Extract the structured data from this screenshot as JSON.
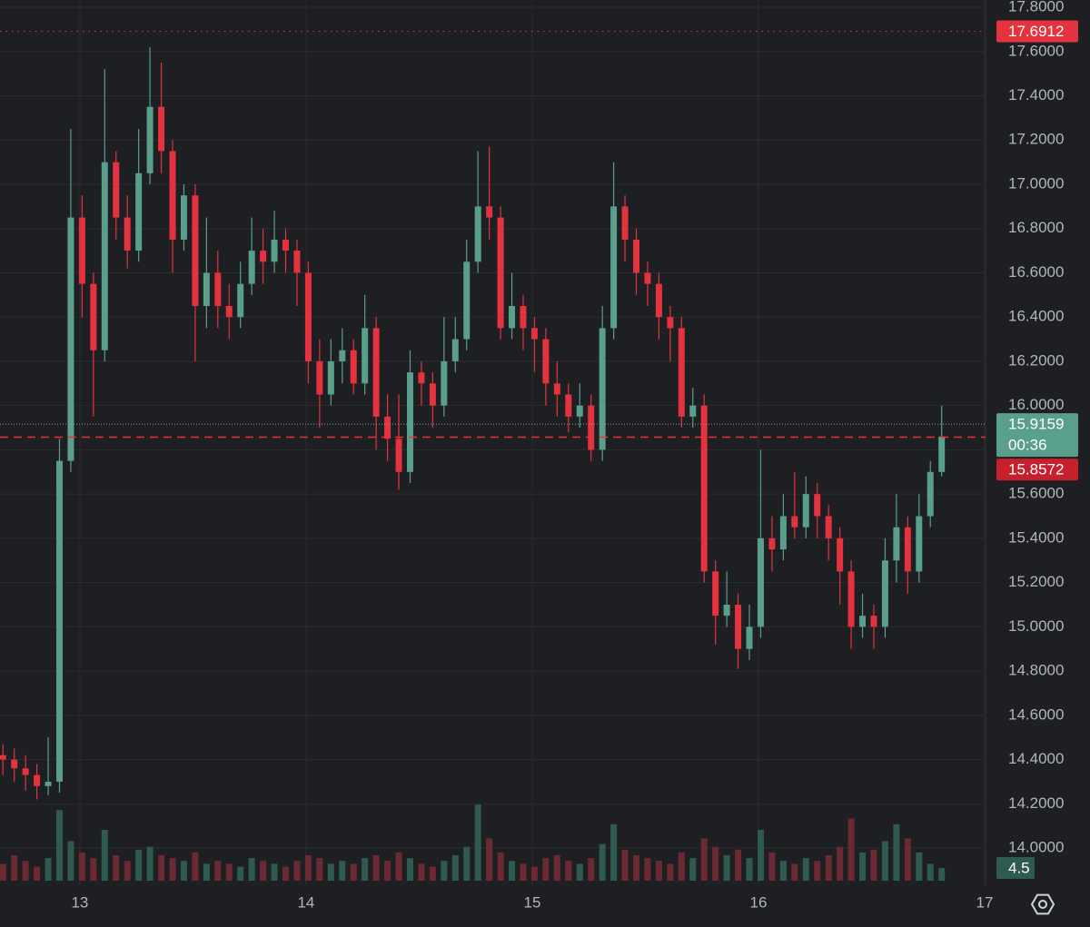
{
  "chart_data": {
    "type": "candlestick",
    "x": [
      12.66,
      12.71,
      12.76,
      12.81,
      12.86,
      12.91,
      12.96,
      13.01,
      13.06,
      13.11,
      13.16,
      13.21,
      13.26,
      13.31,
      13.36,
      13.41,
      13.46,
      13.51,
      13.56,
      13.61,
      13.66,
      13.71,
      13.76,
      13.81,
      13.86,
      13.91,
      13.96,
      14.01,
      14.06,
      14.11,
      14.16,
      14.21,
      14.26,
      14.31,
      14.36,
      14.41,
      14.46,
      14.51,
      14.56,
      14.61,
      14.66,
      14.71,
      14.76,
      14.81,
      14.86,
      14.91,
      14.96,
      15.01,
      15.06,
      15.11,
      15.16,
      15.21,
      15.26,
      15.31,
      15.36,
      15.41,
      15.46,
      15.51,
      15.56,
      15.61,
      15.66,
      15.71,
      15.76,
      15.81,
      15.86,
      15.91,
      15.96,
      16.01,
      16.06,
      16.11,
      16.16,
      16.21,
      16.26,
      16.31,
      16.36,
      16.41,
      16.46,
      16.51,
      16.56,
      16.61,
      16.66,
      16.71,
      16.76,
      16.81
    ],
    "open": [
      14.42,
      14.4,
      14.36,
      14.33,
      14.28,
      14.3,
      15.75,
      16.85,
      16.55,
      16.25,
      17.1,
      16.85,
      16.7,
      17.05,
      17.35,
      17.15,
      16.75,
      16.95,
      16.45,
      16.6,
      16.45,
      16.4,
      16.55,
      16.7,
      16.65,
      16.75,
      16.7,
      16.6,
      16.2,
      16.05,
      16.2,
      16.25,
      16.1,
      16.35,
      15.95,
      15.85,
      15.7,
      16.15,
      16.1,
      16.0,
      16.2,
      16.3,
      16.65,
      16.9,
      16.85,
      16.35,
      16.45,
      16.35,
      16.3,
      16.1,
      16.05,
      15.95,
      16.0,
      15.8,
      16.35,
      16.9,
      16.75,
      16.6,
      16.55,
      16.4,
      16.35,
      15.95,
      16.0,
      15.25,
      15.05,
      15.1,
      14.9,
      15.0,
      15.4,
      15.35,
      15.5,
      15.45,
      15.6,
      15.5,
      15.4,
      15.25,
      15.0,
      15.05,
      15.0,
      15.3,
      15.45,
      15.25,
      15.5,
      15.7
    ],
    "high": [
      14.47,
      14.45,
      14.42,
      14.38,
      14.5,
      15.85,
      17.25,
      16.95,
      16.6,
      17.52,
      17.15,
      16.95,
      17.25,
      17.62,
      17.55,
      17.2,
      17.0,
      17.0,
      16.85,
      16.7,
      16.55,
      16.65,
      16.85,
      16.8,
      16.88,
      16.8,
      16.75,
      16.65,
      16.3,
      16.3,
      16.35,
      16.3,
      16.5,
      16.4,
      16.05,
      16.05,
      16.25,
      16.2,
      16.15,
      16.4,
      16.4,
      16.75,
      17.15,
      17.17,
      16.9,
      16.6,
      16.5,
      16.4,
      16.35,
      16.2,
      16.1,
      16.1,
      16.05,
      16.45,
      17.1,
      16.95,
      16.8,
      16.65,
      16.6,
      16.45,
      16.4,
      16.08,
      16.05,
      15.3,
      15.25,
      15.15,
      15.1,
      15.8,
      15.5,
      15.6,
      15.7,
      15.68,
      15.65,
      15.55,
      15.45,
      15.3,
      15.15,
      15.1,
      15.4,
      15.6,
      15.5,
      15.6,
      15.75,
      16.0
    ],
    "low": [
      14.33,
      14.3,
      14.26,
      14.22,
      14.24,
      14.25,
      15.7,
      16.4,
      15.95,
      16.2,
      16.75,
      16.62,
      16.65,
      17.0,
      17.05,
      16.6,
      16.7,
      16.2,
      16.35,
      16.35,
      16.3,
      16.35,
      16.5,
      16.55,
      16.6,
      16.6,
      16.45,
      16.1,
      15.9,
      16.0,
      16.1,
      16.05,
      16.05,
      15.8,
      15.75,
      15.62,
      15.65,
      16.0,
      15.9,
      15.95,
      16.15,
      16.25,
      16.6,
      16.75,
      16.3,
      16.3,
      16.25,
      16.15,
      16.0,
      15.95,
      15.88,
      15.9,
      15.75,
      15.75,
      16.3,
      16.65,
      16.5,
      16.45,
      16.3,
      16.2,
      15.9,
      15.9,
      15.2,
      14.92,
      15.0,
      14.81,
      14.85,
      14.95,
      15.25,
      15.3,
      15.4,
      15.4,
      15.4,
      15.3,
      15.1,
      14.9,
      14.95,
      14.9,
      14.95,
      15.2,
      15.15,
      15.2,
      15.45,
      15.68
    ],
    "close": [
      14.4,
      14.36,
      14.33,
      14.28,
      14.3,
      15.75,
      16.85,
      16.55,
      16.25,
      17.1,
      16.85,
      16.7,
      17.05,
      17.35,
      17.15,
      16.75,
      16.95,
      16.45,
      16.6,
      16.45,
      16.4,
      16.55,
      16.7,
      16.65,
      16.75,
      16.7,
      16.6,
      16.2,
      16.05,
      16.2,
      16.25,
      16.1,
      16.35,
      15.95,
      15.85,
      15.7,
      16.15,
      16.1,
      16.0,
      16.2,
      16.3,
      16.65,
      16.9,
      16.85,
      16.35,
      16.45,
      16.35,
      16.3,
      16.1,
      16.05,
      15.95,
      16.0,
      15.8,
      16.35,
      16.9,
      16.75,
      16.6,
      16.55,
      16.4,
      16.35,
      15.95,
      16.0,
      15.25,
      15.05,
      15.1,
      14.9,
      15.0,
      15.4,
      15.35,
      15.5,
      15.45,
      15.6,
      15.5,
      15.4,
      15.25,
      15.0,
      15.05,
      15.0,
      15.3,
      15.45,
      15.25,
      15.5,
      15.7,
      15.86
    ],
    "up_color": "#5a9e8c",
    "down_color": "#e5323f",
    "xlim": [
      12.647,
      17.004
    ],
    "xticks": [
      13,
      14,
      15,
      16,
      17
    ],
    "ylim": [
      13.832,
      17.833
    ],
    "yticks": [
      {
        "value": 14.0,
        "label": "14.0000"
      },
      {
        "value": 14.2,
        "label": "14.2000"
      },
      {
        "value": 14.4,
        "label": "14.4000"
      },
      {
        "value": 14.6,
        "label": "14.6000"
      },
      {
        "value": 14.8,
        "label": "14.8000"
      },
      {
        "value": 15.0,
        "label": "15.0000"
      },
      {
        "value": 15.2,
        "label": "15.2000"
      },
      {
        "value": 15.4,
        "label": "15.4000"
      },
      {
        "value": 15.6,
        "label": "15.6000"
      },
      {
        "value": 15.8,
        "label": "15.8000"
      },
      {
        "value": 16.0,
        "label": "16.0000"
      },
      {
        "value": 16.2,
        "label": "16.2000"
      },
      {
        "value": 16.4,
        "label": "16.4000"
      },
      {
        "value": 16.6,
        "label": "16.6000"
      },
      {
        "value": 16.8,
        "label": "16.8000"
      },
      {
        "value": 17.0,
        "label": "17.0000"
      },
      {
        "value": 17.2,
        "label": "17.2000"
      },
      {
        "value": 17.4,
        "label": "17.4000"
      },
      {
        "value": 17.6,
        "label": "17.6000"
      },
      {
        "value": 17.8,
        "label": "17.8000"
      }
    ],
    "grid": true,
    "high_line": 17.6912,
    "last_price": 15.9159,
    "countdown": "00:36",
    "ref_line": 15.8572,
    "volume": {
      "values": [
        6,
        9,
        7,
        5,
        8,
        25,
        14,
        10,
        8,
        18,
        9,
        7,
        11,
        12,
        9,
        8,
        7,
        10,
        6,
        7,
        6,
        5,
        8,
        7,
        6,
        5,
        7,
        9,
        8,
        6,
        7,
        6,
        8,
        9,
        7,
        10,
        8,
        6,
        5,
        7,
        9,
        12,
        27,
        15,
        10,
        7,
        6,
        5,
        8,
        9,
        7,
        6,
        8,
        13,
        20,
        11,
        9,
        8,
        7,
        6,
        10,
        8,
        15,
        12,
        9,
        11,
        8,
        18,
        10,
        7,
        6,
        8,
        7,
        9,
        12,
        22,
        10,
        11,
        14,
        20,
        15,
        10,
        6,
        4.5
      ],
      "ylim": [
        0,
        312
      ],
      "up_color": "#2f5a50",
      "down_color": "#6b2a33"
    }
  }
}
